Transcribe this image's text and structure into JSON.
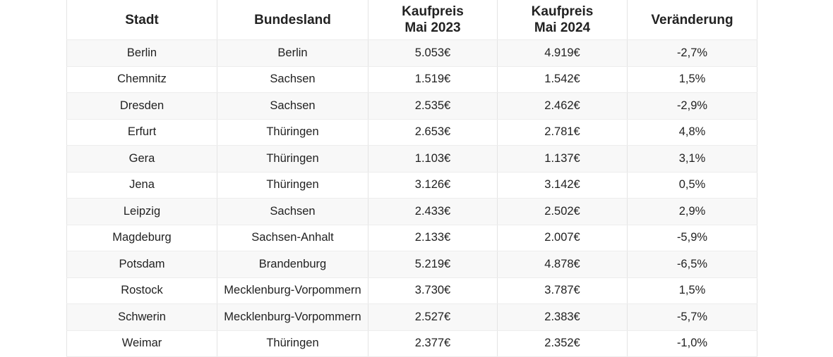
{
  "table": {
    "headers": [
      {
        "line1": "Stadt",
        "line2": ""
      },
      {
        "line1": "Bundesland",
        "line2": ""
      },
      {
        "line1": "Kaufpreis",
        "line2": "Mai 2023"
      },
      {
        "line1": "Kaufpreis",
        "line2": "Mai 2024"
      },
      {
        "line1": "Veränderung",
        "line2": ""
      }
    ],
    "rows": [
      [
        "Berlin",
        "Berlin",
        "5.053€",
        "4.919€",
        "-2,7%"
      ],
      [
        "Chemnitz",
        "Sachsen",
        "1.519€",
        "1.542€",
        "1,5%"
      ],
      [
        "Dresden",
        "Sachsen",
        "2.535€",
        "2.462€",
        "-2,9%"
      ],
      [
        "Erfurt",
        "Thüringen",
        "2.653€",
        "2.781€",
        "4,8%"
      ],
      [
        "Gera",
        "Thüringen",
        "1.103€",
        "1.137€",
        "3,1%"
      ],
      [
        "Jena",
        "Thüringen",
        "3.126€",
        "3.142€",
        "0,5%"
      ],
      [
        "Leipzig",
        "Sachsen",
        "2.433€",
        "2.502€",
        "2,9%"
      ],
      [
        "Magdeburg",
        "Sachsen-Anhalt",
        "2.133€",
        "2.007€",
        "-5,9%"
      ],
      [
        "Potsdam",
        "Brandenburg",
        "5.219€",
        "4.878€",
        "-6,5%"
      ],
      [
        "Rostock",
        "Mecklenburg-Vorpommern",
        "3.730€",
        "3.787€",
        "1,5%"
      ],
      [
        "Schwerin",
        "Mecklenburg-Vorpommern",
        "2.527€",
        "2.383€",
        "-5,7%"
      ],
      [
        "Weimar",
        "Thüringen",
        "2.377€",
        "2.352€",
        "-1,0%"
      ]
    ]
  }
}
